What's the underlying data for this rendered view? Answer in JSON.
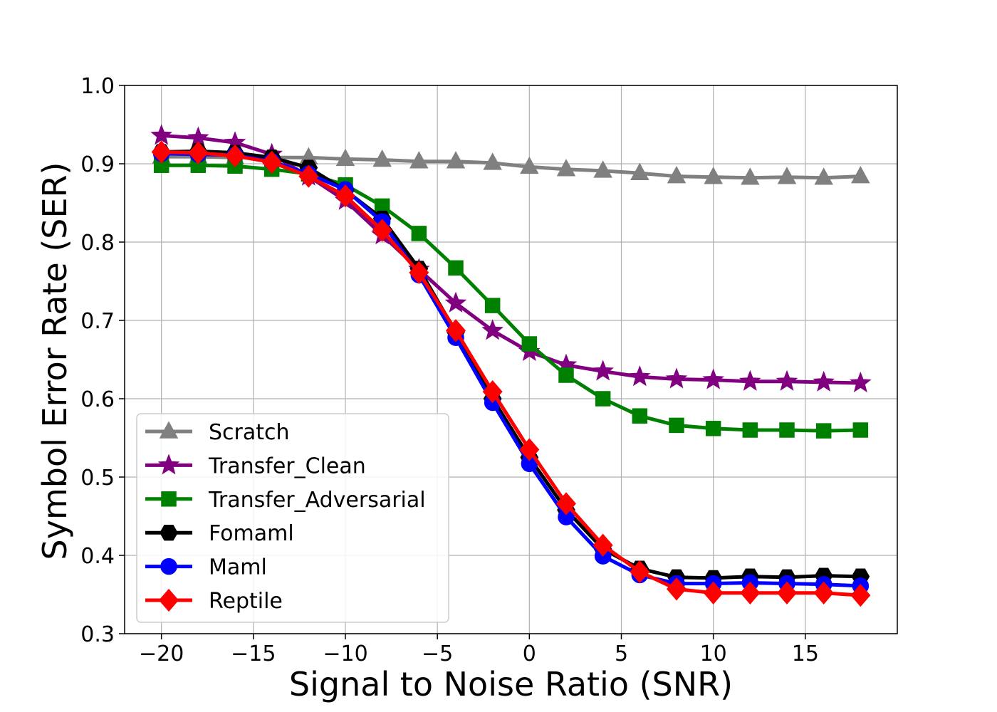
{
  "chart_data": {
    "type": "line",
    "title": "",
    "xlabel": "Signal to Noise Ratio (SNR)",
    "ylabel": "Symbol Error Rate (SER)",
    "xlim": [
      -22,
      20
    ],
    "ylim": [
      0.3,
      1.0
    ],
    "xticks": [
      -20,
      -15,
      -10,
      -5,
      0,
      5,
      10,
      15
    ],
    "xtick_labels": [
      "−20",
      "−15",
      "−10",
      "−5",
      "0",
      "5",
      "10",
      "15"
    ],
    "yticks": [
      0.3,
      0.4,
      0.5,
      0.6,
      0.7,
      0.8,
      0.9,
      1.0
    ],
    "ytick_labels": [
      "0.3",
      "0.4",
      "0.5",
      "0.6",
      "0.7",
      "0.8",
      "0.9",
      "1.0"
    ],
    "grid": true,
    "legend_position": "lower-left",
    "x": [
      -20,
      -18,
      -16,
      -14,
      -12,
      -10,
      -8,
      -6,
      -4,
      -2,
      0,
      2,
      4,
      6,
      8,
      10,
      12,
      14,
      16,
      18
    ],
    "series": [
      {
        "name": "Scratch",
        "color": "#808080",
        "marker": "triangle",
        "values": [
          0.909,
          0.909,
          0.908,
          0.908,
          0.908,
          0.906,
          0.905,
          0.903,
          0.903,
          0.901,
          0.896,
          0.893,
          0.891,
          0.888,
          0.884,
          0.883,
          0.882,
          0.883,
          0.882,
          0.884
        ]
      },
      {
        "name": "Transfer_Clean",
        "color": "#800080",
        "marker": "star",
        "values": [
          0.936,
          0.933,
          0.927,
          0.912,
          0.884,
          0.853,
          0.809,
          0.765,
          0.722,
          0.687,
          0.66,
          0.643,
          0.635,
          0.628,
          0.625,
          0.624,
          0.622,
          0.622,
          0.621,
          0.62
        ]
      },
      {
        "name": "Transfer_Adversarial",
        "color": "#008000",
        "marker": "square",
        "values": [
          0.898,
          0.898,
          0.897,
          0.893,
          0.887,
          0.873,
          0.846,
          0.811,
          0.767,
          0.719,
          0.67,
          0.63,
          0.6,
          0.578,
          0.566,
          0.562,
          0.56,
          0.56,
          0.559,
          0.56
        ]
      },
      {
        "name": "Fomaml",
        "color": "#000000",
        "marker": "hexagon",
        "values": [
          0.915,
          0.916,
          0.914,
          0.908,
          0.895,
          0.866,
          0.83,
          0.766,
          0.685,
          0.6,
          0.525,
          0.458,
          0.408,
          0.383,
          0.372,
          0.371,
          0.373,
          0.372,
          0.374,
          0.373
        ]
      },
      {
        "name": "Maml",
        "color": "#0000ff",
        "marker": "circle",
        "values": [
          0.913,
          0.912,
          0.911,
          0.903,
          0.887,
          0.867,
          0.826,
          0.758,
          0.678,
          0.595,
          0.517,
          0.449,
          0.399,
          0.375,
          0.364,
          0.364,
          0.365,
          0.364,
          0.363,
          0.361
        ]
      },
      {
        "name": "Reptile",
        "color": "#ff0000",
        "marker": "diamond",
        "values": [
          0.915,
          0.914,
          0.91,
          0.902,
          0.884,
          0.859,
          0.815,
          0.761,
          0.687,
          0.609,
          0.535,
          0.466,
          0.413,
          0.379,
          0.357,
          0.352,
          0.352,
          0.352,
          0.352,
          0.349
        ]
      }
    ]
  }
}
